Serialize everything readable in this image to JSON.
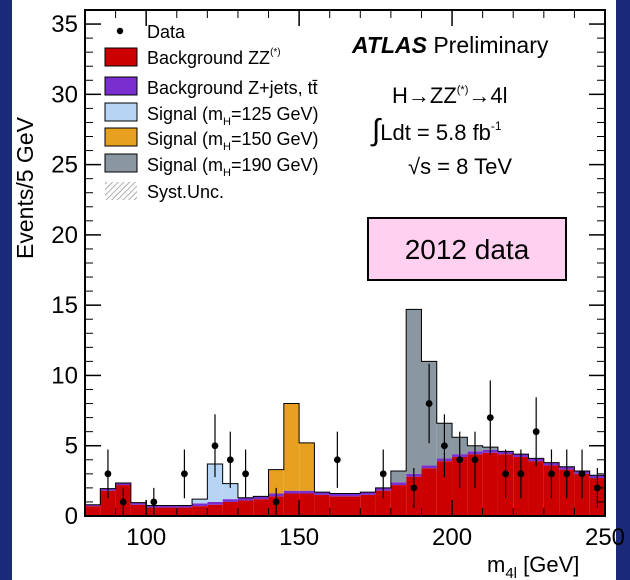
{
  "chart_data": {
    "type": "bar",
    "xlabel_main": "m",
    "xlabel_sub": "4l",
    "xlabel_unit": " [GeV]",
    "ylabel": "Events/5 GeV",
    "xlim": [
      80,
      250
    ],
    "ylim": [
      0,
      36
    ],
    "bin_width": 5,
    "bin_lows": [
      80,
      85,
      90,
      95,
      100,
      105,
      110,
      115,
      120,
      125,
      130,
      135,
      140,
      145,
      150,
      155,
      160,
      165,
      170,
      175,
      180,
      185,
      190,
      195,
      200,
      205,
      210,
      215,
      220,
      225,
      230,
      235,
      240,
      245
    ],
    "x_ticks": [
      {
        "value": 100,
        "label": "100"
      },
      {
        "value": 150,
        "label": "150"
      },
      {
        "value": 200,
        "label": "200"
      },
      {
        "value": 250,
        "label": "250"
      }
    ],
    "y_ticks": [
      {
        "value": 0,
        "label": "0"
      },
      {
        "value": 5,
        "label": "5"
      },
      {
        "value": 10,
        "label": "10"
      },
      {
        "value": 15,
        "label": "15"
      },
      {
        "value": 20,
        "label": "20"
      },
      {
        "value": 25,
        "label": "25"
      },
      {
        "value": 30,
        "label": "30"
      },
      {
        "value": 35,
        "label": "35"
      }
    ],
    "series": [
      {
        "name": "Background ZZ",
        "name_sup": "(*)",
        "color": "#cc0000",
        "values": [
          0.7,
          1.8,
          2.2,
          0.8,
          0.6,
          0.6,
          0.6,
          0.7,
          0.8,
          1.0,
          1.1,
          1.2,
          1.4,
          1.6,
          1.6,
          1.5,
          1.4,
          1.4,
          1.5,
          1.8,
          2.2,
          2.8,
          3.4,
          3.9,
          4.2,
          4.4,
          4.5,
          4.4,
          4.2,
          3.9,
          3.6,
          3.3,
          3.0,
          2.7
        ]
      },
      {
        "name": "Background Z+jets, tt",
        "name_bar": "̄",
        "color": "#7a2ecf",
        "values": [
          0.1,
          0.15,
          0.15,
          0.15,
          0.15,
          0.15,
          0.15,
          0.2,
          0.2,
          0.2,
          0.2,
          0.2,
          0.2,
          0.2,
          0.2,
          0.2,
          0.2,
          0.2,
          0.2,
          0.2,
          0.2,
          0.2,
          0.2,
          0.2,
          0.2,
          0.2,
          0.2,
          0.2,
          0.2,
          0.2,
          0.2,
          0.2,
          0.2,
          0.2
        ]
      },
      {
        "name": "Signal (m",
        "name_sub": "H",
        "name_end": "=125 GeV)",
        "color": "#b8d4f4",
        "values": [
          0,
          0,
          0,
          0,
          0,
          0,
          0,
          0.3,
          2.7,
          1.1,
          0,
          0,
          0,
          0,
          0,
          0,
          0,
          0,
          0,
          0,
          0,
          0,
          0,
          0,
          0,
          0,
          0,
          0,
          0,
          0,
          0,
          0,
          0,
          0
        ]
      },
      {
        "name": "Signal (m",
        "name_sub": "H",
        "name_end": "=150 GeV)",
        "color": "#e8a020",
        "values": [
          0,
          0,
          0,
          0,
          0,
          0,
          0,
          0,
          0,
          0,
          0,
          0,
          1.7,
          6.2,
          3.4,
          0,
          0,
          0,
          0,
          0,
          0,
          0,
          0,
          0,
          0,
          0,
          0,
          0,
          0,
          0,
          0,
          0,
          0,
          0
        ]
      },
      {
        "name": "Signal (m",
        "name_sub": "H",
        "name_end": "=190 GeV)",
        "color": "#8a96a0",
        "values": [
          0,
          0,
          0,
          0,
          0,
          0,
          0,
          0,
          0,
          0,
          0,
          0,
          0,
          0,
          0,
          0,
          0,
          0,
          0,
          0,
          0.8,
          11.7,
          7.4,
          2.5,
          1.2,
          0.4,
          0.2,
          0,
          0,
          0,
          0,
          0,
          0,
          0
        ]
      }
    ],
    "syst_unc_label": "Syst.Unc.",
    "data": {
      "name": "Data",
      "points": [
        {
          "x": 87.5,
          "y": 3
        },
        {
          "x": 92.5,
          "y": 1
        },
        {
          "x": 102.5,
          "y": 1
        },
        {
          "x": 112.5,
          "y": 3
        },
        {
          "x": 122.5,
          "y": 5
        },
        {
          "x": 127.5,
          "y": 4
        },
        {
          "x": 132.5,
          "y": 3
        },
        {
          "x": 142.5,
          "y": 1
        },
        {
          "x": 162.5,
          "y": 4
        },
        {
          "x": 177.5,
          "y": 3
        },
        {
          "x": 187.5,
          "y": 2
        },
        {
          "x": 192.5,
          "y": 8
        },
        {
          "x": 197.5,
          "y": 5
        },
        {
          "x": 202.5,
          "y": 4
        },
        {
          "x": 207.5,
          "y": 4
        },
        {
          "x": 212.5,
          "y": 7
        },
        {
          "x": 217.5,
          "y": 3
        },
        {
          "x": 222.5,
          "y": 3
        },
        {
          "x": 227.5,
          "y": 6
        },
        {
          "x": 232.5,
          "y": 3
        },
        {
          "x": 237.5,
          "y": 3
        },
        {
          "x": 242.5,
          "y": 3
        },
        {
          "x": 247.5,
          "y": 2
        }
      ]
    },
    "annotations": {
      "atlas": "ATLAS",
      "preliminary": " Preliminary",
      "process": "H→ZZ",
      "process_sup": "(*)",
      "process_end": "→4l",
      "lumi_integral": "∫",
      "lumi": "Ldt = 5.8 fb",
      "lumi_sup": "-1",
      "energy": "√s = 8 TeV",
      "data_year_box": "2012 data"
    }
  }
}
